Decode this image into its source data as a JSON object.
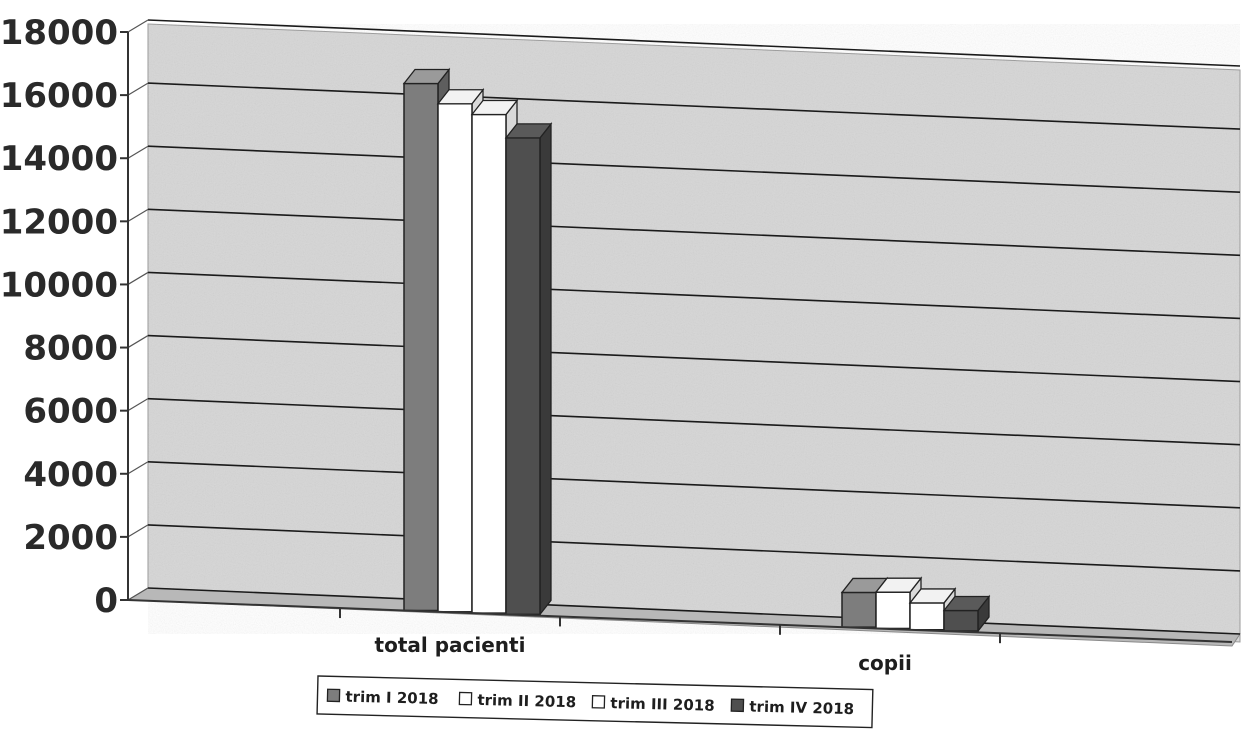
{
  "chart_data": {
    "type": "bar",
    "categories": [
      "total pacienti",
      "copii"
    ],
    "series": [
      {
        "name": "trim I 2018",
        "values": [
          16700,
          1100
        ]
      },
      {
        "name": "trim II 2018",
        "values": [
          16100,
          1150
        ]
      },
      {
        "name": "trim III 2018",
        "values": [
          15800,
          850
        ]
      },
      {
        "name": "trim IV 2018",
        "values": [
          15100,
          650
        ]
      }
    ],
    "ylim": [
      0,
      18000
    ],
    "yticks": [
      "18000",
      "16000",
      "14000",
      "12000",
      "10000",
      "8000",
      "6000",
      "4000",
      "2000",
      "0"
    ],
    "grid": true,
    "legend_position": "bottom",
    "colors": {
      "wall": "#d6d6d6",
      "floor": "#b8b8b8",
      "grid": "#1a1a1a",
      "series": [
        "#7d7d7d",
        "#ffffff",
        "#ffffff",
        "#4f4f4f"
      ]
    }
  }
}
